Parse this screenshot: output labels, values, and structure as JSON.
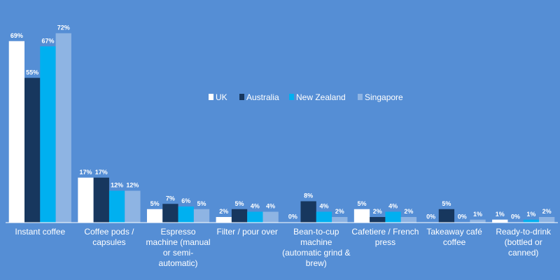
{
  "colors": {
    "background": "#558ed5",
    "axis": "#ffffff"
  },
  "chart_data": {
    "type": "bar",
    "categories": [
      "Instant coffee",
      "Coffee pods / capsules",
      "Espresso machine (manual or semi-automatic)",
      "Filter / pour over",
      "Bean-to-cup machine (automatic grind & brew)",
      "Cafetiere / French press",
      "Takeaway café coffee",
      "Ready-to-drink (bottled or canned)"
    ],
    "category_lines": [
      [
        "Instant coffee"
      ],
      [
        "Coffee pods /",
        "capsules"
      ],
      [
        "Espresso",
        "machine (manual",
        "or semi-",
        "automatic)"
      ],
      [
        "Filter / pour over"
      ],
      [
        "Bean-to-cup",
        "machine",
        "(automatic grind &",
        "brew)"
      ],
      [
        "Cafetiere / French",
        "press"
      ],
      [
        "Takeaway café",
        "coffee"
      ],
      [
        "Ready-to-drink",
        "(bottled or",
        "canned)"
      ]
    ],
    "series": [
      {
        "name": "UK",
        "color": "#ffffff",
        "values": [
          69,
          17,
          5,
          2,
          0,
          5,
          0,
          1
        ]
      },
      {
        "name": "Australia",
        "color": "#17375e",
        "values": [
          55,
          17,
          7,
          5,
          8,
          2,
          5,
          0
        ]
      },
      {
        "name": "New Zealand",
        "color": "#00b0f0",
        "values": [
          67,
          12,
          6,
          4,
          4,
          4,
          0,
          1
        ]
      },
      {
        "name": "Singapore",
        "color": "#8eb4e3",
        "values": [
          72,
          12,
          5,
          4,
          2,
          2,
          1,
          2
        ]
      }
    ],
    "value_suffix": "%",
    "ylim": [
      0,
      72
    ],
    "grid": false,
    "legend_position": "center-right"
  }
}
